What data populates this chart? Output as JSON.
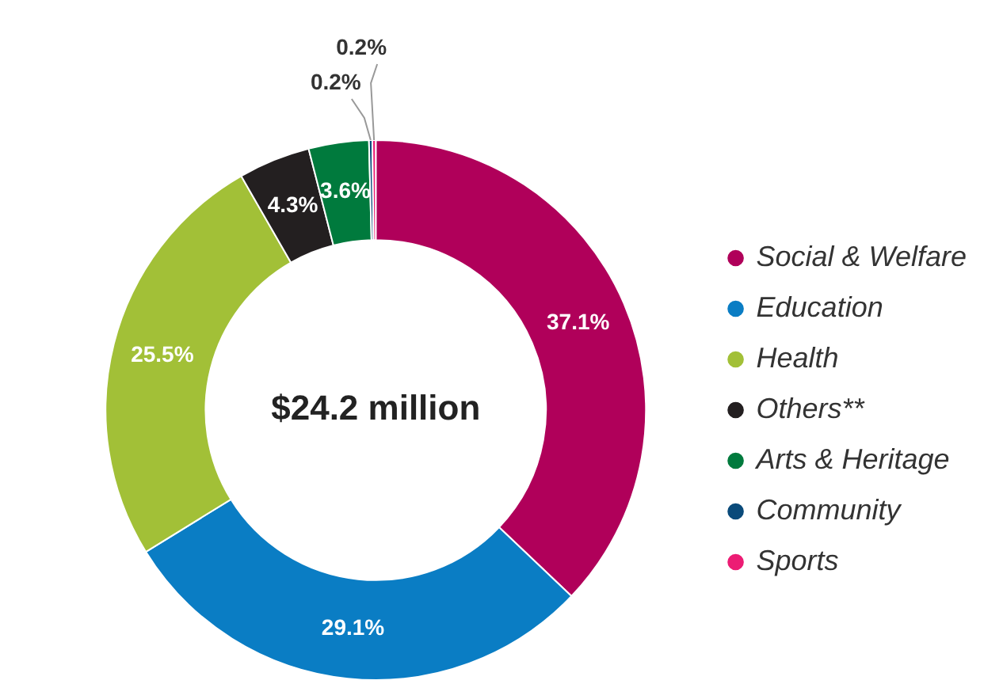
{
  "chart_data": {
    "type": "donut",
    "categories": [
      "Social & Welfare",
      "Education",
      "Health",
      "Others**",
      "Arts & Heritage",
      "Community",
      "Sports"
    ],
    "values": [
      37.1,
      29.1,
      25.5,
      4.3,
      3.6,
      0.2,
      0.2
    ],
    "colors": [
      "#b0005a",
      "#0a7dc4",
      "#a2c037",
      "#231f20",
      "#007a3d",
      "#0a4a7a",
      "#ec1c74"
    ],
    "value_labels": [
      "37.1%",
      "29.1%",
      "25.5%",
      "4.3%",
      "3.6%",
      "0.2%",
      "0.2%"
    ],
    "annotations": [
      "$24.2 million"
    ],
    "legend": "right"
  }
}
